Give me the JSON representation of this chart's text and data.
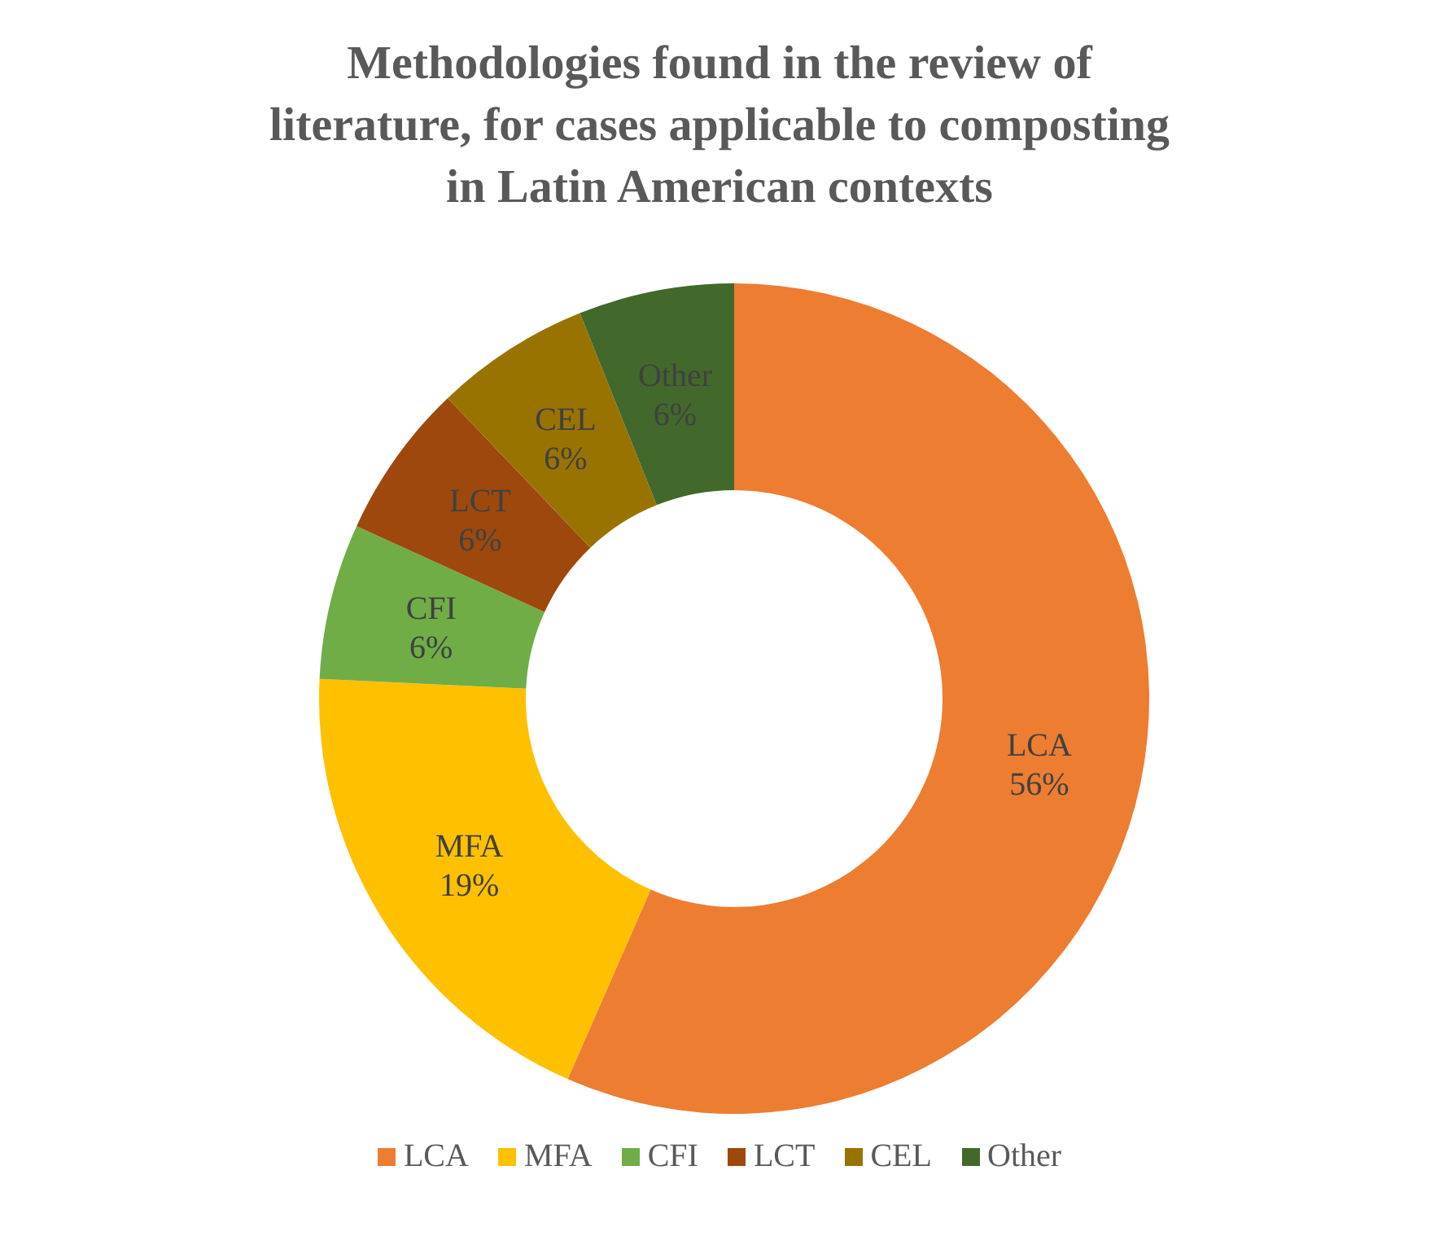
{
  "chart_data": {
    "type": "donut",
    "title": "Methodologies found in the review of literature, for cases applicable to composting in Latin American contexts",
    "categories": [
      "LCA",
      "MFA",
      "CFI",
      "LCT",
      "CEL",
      "Other"
    ],
    "values": [
      56,
      19,
      6,
      6,
      6,
      6
    ],
    "value_labels": [
      "56%",
      "19%",
      "6%",
      "6%",
      "6%",
      "6%"
    ],
    "colors": [
      "#ed7d31",
      "#ffc000",
      "#70ad47",
      "#9e480e",
      "#997300",
      "#43682b"
    ],
    "legend": "bottom"
  }
}
